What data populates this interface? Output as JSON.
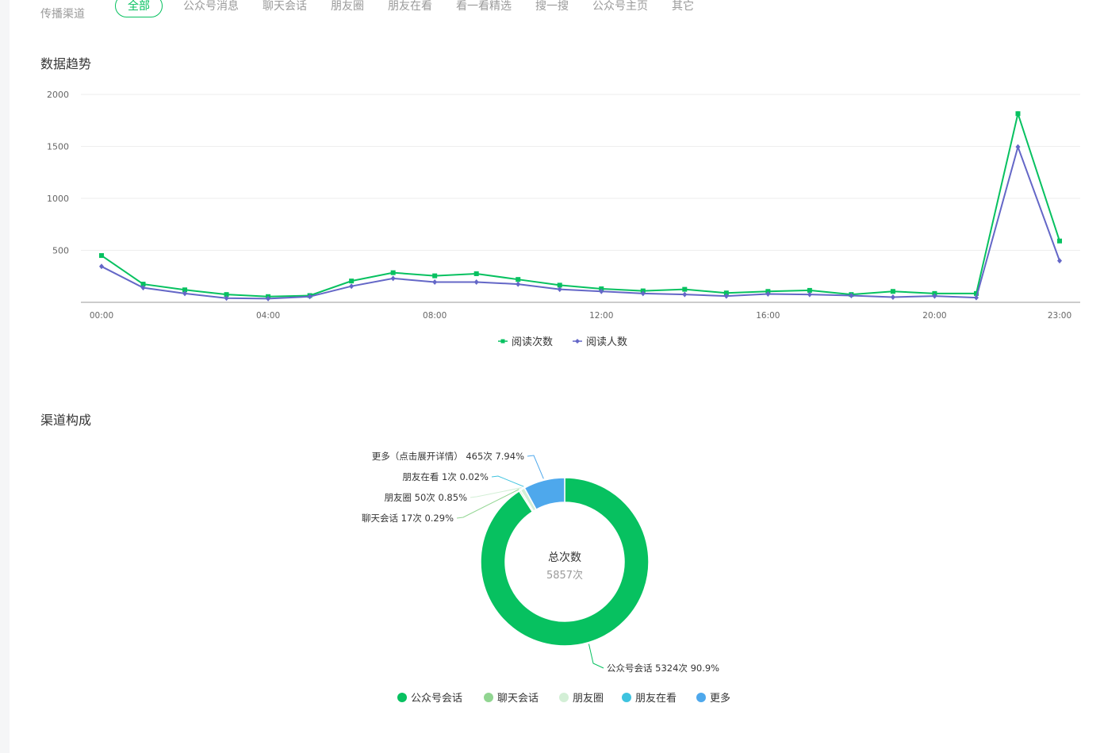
{
  "channels": {
    "label": "传播渠道",
    "tabs": [
      {
        "label": "全部",
        "active": true
      },
      {
        "label": "公众号消息",
        "active": false
      },
      {
        "label": "聊天会话",
        "active": false
      },
      {
        "label": "朋友圈",
        "active": false
      },
      {
        "label": "朋友在看",
        "active": false
      },
      {
        "label": "看一看精选",
        "active": false
      },
      {
        "label": "搜一搜",
        "active": false
      },
      {
        "label": "公众号主页",
        "active": false
      },
      {
        "label": "其它",
        "active": false
      }
    ]
  },
  "trend": {
    "title": "数据趋势"
  },
  "mix": {
    "title": "渠道构成"
  },
  "chart_data": [
    {
      "type": "line",
      "x": [
        "00:00",
        "01:00",
        "02:00",
        "03:00",
        "04:00",
        "05:00",
        "06:00",
        "07:00",
        "08:00",
        "09:00",
        "10:00",
        "11:00",
        "12:00",
        "13:00",
        "14:00",
        "15:00",
        "16:00",
        "17:00",
        "18:00",
        "19:00",
        "20:00",
        "21:00",
        "22:00",
        "23:00"
      ],
      "x_tick_labels": [
        "00:00",
        "04:00",
        "08:00",
        "12:00",
        "16:00",
        "20:00",
        "23:00"
      ],
      "y_ticks": [
        500,
        1000,
        1500,
        2000
      ],
      "ylim": [
        0,
        2000
      ],
      "grid": true,
      "legend": "bottom",
      "series": [
        {
          "name": "阅读次数",
          "color": "#07c160",
          "marker": "square",
          "values": [
            450,
            175,
            120,
            75,
            55,
            65,
            205,
            285,
            255,
            275,
            220,
            165,
            130,
            110,
            125,
            90,
            105,
            115,
            75,
            105,
            85,
            85,
            1815,
            590
          ]
        },
        {
          "name": "阅读人数",
          "color": "#6467c7",
          "marker": "diamond",
          "values": [
            345,
            140,
            85,
            40,
            35,
            55,
            155,
            230,
            195,
            195,
            175,
            125,
            105,
            85,
            75,
            60,
            80,
            75,
            65,
            50,
            60,
            45,
            1495,
            400
          ]
        }
      ]
    },
    {
      "type": "pie",
      "variant": "donut",
      "center_title": "总次数",
      "center_value": "5857次",
      "legend": "bottom",
      "slices": [
        {
          "name": "公众号会话",
          "value": 5324,
          "percent": 90.9,
          "color": "#07c160",
          "label": "公众号会话 5324次 90.9%"
        },
        {
          "name": "聊天会话",
          "value": 17,
          "percent": 0.29,
          "color": "#91d591",
          "label": "聊天会话 17次 0.29%"
        },
        {
          "name": "朋友圈",
          "value": 50,
          "percent": 0.85,
          "color": "#d3efd6",
          "label": "朋友圈 50次 0.85%"
        },
        {
          "name": "朋友在看",
          "value": 1,
          "percent": 0.02,
          "color": "#3ec3df",
          "label": "朋友在看 1次 0.02%"
        },
        {
          "name": "更多",
          "value": 465,
          "percent": 7.94,
          "color": "#4ea8ec",
          "label": "更多（点击展开详情） 465次 7.94%"
        }
      ]
    }
  ]
}
